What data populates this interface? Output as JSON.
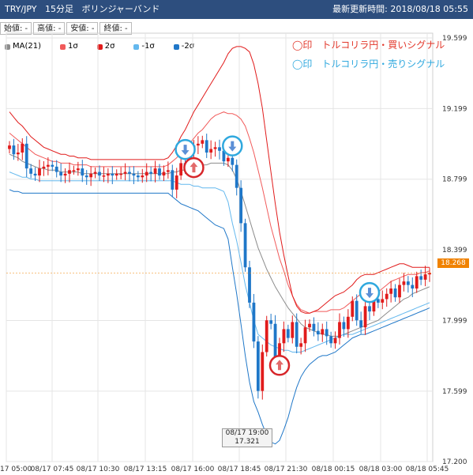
{
  "header": {
    "symbol": "TRY/JPY",
    "timeframe": "15分足",
    "indicator": "ボリンジャーバンド",
    "updated_label": "最新更新時間:",
    "updated_value": "2018/08/18 05:55"
  },
  "ohlc_boxes": [
    "始値: -",
    "高値: -",
    "安値: -",
    "終値: -"
  ],
  "legend": [
    {
      "label": "MA(21)",
      "color": "#8c8c8c"
    },
    {
      "label": "1σ",
      "color": "#f15a5a"
    },
    {
      "label": "2σ",
      "color": "#e11b1b"
    },
    {
      "label": "-1σ",
      "color": "#64b8ee"
    },
    {
      "label": "-2σ",
      "color": "#1f77c8"
    }
  ],
  "annotations": {
    "buy": "◯印　トルコリラ円・買いシグナル",
    "sell": "◯印　トルコリラ円・売りシグナル"
  },
  "colors": {
    "up": "#e11b1b",
    "down": "#1f77c8",
    "ma": "#8c8c8c",
    "upper1": "#f15a5a",
    "upper2": "#e11b1b",
    "lower1": "#64b8ee",
    "lower2": "#1f77c8",
    "buy_circle": "#d7262a",
    "sell_circle": "#2fa8de"
  },
  "last_price": "18.268",
  "tooltip": {
    "time": "08/17 19:00",
    "value": "17.321"
  },
  "chart_data": {
    "type": "candlestick",
    "symbol": "TRY/JPY",
    "ylim": [
      17.2,
      19.599
    ],
    "y_ticks": [
      "19.599",
      "19.199",
      "18.799",
      "18.399",
      "17.999",
      "17.599",
      "17.200"
    ],
    "x_ticks": [
      "17 05:00",
      "08/17 07:45",
      "08/17 10:30",
      "08/17 13:15",
      "08/17 16:00",
      "08/17 18:45",
      "08/17 21:30",
      "08/18 00:15",
      "08/18 03:00",
      "08/18 05:45"
    ],
    "candles_close": [
      18.99,
      18.94,
      18.95,
      19.0,
      18.86,
      18.83,
      18.82,
      18.86,
      18.87,
      18.88,
      18.87,
      18.84,
      18.82,
      18.83,
      18.85,
      18.85,
      18.86,
      18.82,
      18.81,
      18.83,
      18.84,
      18.82,
      18.82,
      18.83,
      18.82,
      18.83,
      18.83,
      18.84,
      18.83,
      18.82,
      18.81,
      18.82,
      18.84,
      18.83,
      18.86,
      18.82,
      18.84,
      18.85,
      18.74,
      18.82,
      18.89,
      18.86,
      18.96,
      18.99,
      19.0,
      19.02,
      18.95,
      18.97,
      18.98,
      18.96,
      18.9,
      18.92,
      18.88,
      18.75,
      18.55,
      18.3,
      18.1,
      17.88,
      17.6,
      17.82,
      18.0,
      17.98,
      17.76,
      17.87,
      17.95,
      17.9,
      17.99,
      17.85,
      17.87,
      17.96,
      17.98,
      17.94,
      17.92,
      17.95,
      17.91,
      17.87,
      17.9,
      17.99,
      17.95,
      18.02,
      18.11,
      18.0,
      17.96,
      18.08,
      18.05,
      18.12,
      18.1,
      18.12,
      18.15,
      18.18,
      18.13,
      18.2,
      18.22,
      18.2,
      18.18,
      18.25,
      18.23,
      18.26,
      18.268
    ],
    "series": [
      {
        "name": "MA(21)",
        "values": [
          18.94,
          18.93,
          18.92,
          18.9,
          18.89,
          18.88,
          18.87,
          18.86,
          18.86,
          18.85,
          18.85,
          18.85,
          18.84,
          18.84,
          18.84,
          18.84,
          18.84,
          18.83,
          18.83,
          18.83,
          18.83,
          18.83,
          18.83,
          18.83,
          18.83,
          18.83,
          18.83,
          18.83,
          18.83,
          18.83,
          18.83,
          18.83,
          18.83,
          18.83,
          18.83,
          18.83,
          18.83,
          18.83,
          18.84,
          18.84,
          18.85,
          18.85,
          18.86,
          18.86,
          18.87,
          18.88,
          18.88,
          18.89,
          18.89,
          18.89,
          18.89,
          18.88,
          18.85,
          18.8,
          18.73,
          18.65,
          18.57,
          18.49,
          18.41,
          18.35,
          18.29,
          18.24,
          18.19,
          18.15,
          18.11,
          18.07,
          18.04,
          18.01,
          17.98,
          17.96,
          17.95,
          17.94,
          17.93,
          17.92,
          17.92,
          17.91,
          17.91,
          17.91,
          17.92,
          17.93,
          17.94,
          17.95,
          17.96,
          17.97,
          17.98,
          17.99,
          18.0,
          18.02,
          18.04,
          18.06,
          18.08,
          18.1,
          18.12,
          18.13,
          18.15,
          18.16,
          18.17,
          18.18,
          18.19
        ]
      },
      {
        "name": "1σ",
        "values": [
          19.06,
          19.04,
          19.02,
          19.0,
          18.98,
          18.96,
          18.94,
          18.93,
          18.92,
          18.91,
          18.9,
          18.9,
          18.89,
          18.89,
          18.89,
          18.88,
          18.88,
          18.88,
          18.88,
          18.87,
          18.87,
          18.87,
          18.87,
          18.87,
          18.87,
          18.87,
          18.87,
          18.87,
          18.87,
          18.87,
          18.87,
          18.87,
          18.87,
          18.87,
          18.87,
          18.87,
          18.87,
          18.88,
          18.9,
          18.92,
          18.95,
          18.97,
          19.0,
          19.03,
          19.06,
          19.08,
          19.11,
          19.14,
          19.16,
          19.17,
          19.18,
          19.17,
          19.17,
          19.16,
          19.14,
          19.1,
          19.03,
          18.95,
          18.85,
          18.75,
          18.64,
          18.53,
          18.44,
          18.35,
          18.28,
          18.2,
          18.14,
          18.09,
          18.06,
          18.05,
          18.04,
          18.05,
          18.05,
          18.05,
          18.05,
          18.06,
          18.06,
          18.06,
          18.07,
          18.09,
          18.11,
          18.13,
          18.15,
          18.16,
          18.16,
          18.16,
          18.16,
          18.18,
          18.2,
          18.22,
          18.23,
          18.24,
          18.25,
          18.26,
          18.26,
          18.26,
          18.27,
          18.27,
          18.28
        ]
      },
      {
        "name": "2σ",
        "values": [
          19.18,
          19.15,
          19.12,
          19.1,
          19.07,
          19.04,
          19.02,
          19.0,
          18.98,
          18.97,
          18.96,
          18.95,
          18.94,
          18.94,
          18.93,
          18.93,
          18.92,
          18.92,
          18.92,
          18.91,
          18.91,
          18.91,
          18.91,
          18.91,
          18.91,
          18.91,
          18.91,
          18.91,
          18.91,
          18.91,
          18.91,
          18.91,
          18.91,
          18.91,
          18.91,
          18.91,
          18.91,
          18.92,
          18.95,
          18.99,
          19.04,
          19.08,
          19.13,
          19.18,
          19.22,
          19.26,
          19.3,
          19.34,
          19.38,
          19.42,
          19.46,
          19.51,
          19.54,
          19.55,
          19.55,
          19.54,
          19.52,
          19.45,
          19.34,
          19.2,
          19.02,
          18.84,
          18.66,
          18.5,
          18.37,
          18.25,
          18.14,
          18.08,
          18.05,
          18.04,
          18.04,
          18.05,
          18.06,
          18.08,
          18.1,
          18.12,
          18.14,
          18.15,
          18.16,
          18.18,
          18.2,
          18.23,
          18.25,
          18.26,
          18.26,
          18.26,
          18.27,
          18.28,
          18.29,
          18.3,
          18.31,
          18.32,
          18.32,
          18.31,
          18.3,
          18.3,
          18.3,
          18.3,
          18.3
        ]
      },
      {
        "name": "-1σ",
        "values": [
          18.84,
          18.83,
          18.82,
          18.81,
          18.81,
          18.8,
          18.8,
          18.79,
          18.79,
          18.79,
          18.79,
          18.79,
          18.79,
          18.79,
          18.79,
          18.79,
          18.79,
          18.79,
          18.79,
          18.79,
          18.79,
          18.79,
          18.79,
          18.79,
          18.79,
          18.79,
          18.79,
          18.79,
          18.79,
          18.79,
          18.79,
          18.79,
          18.79,
          18.79,
          18.79,
          18.79,
          18.79,
          18.79,
          18.79,
          18.78,
          18.77,
          18.77,
          18.77,
          18.76,
          18.76,
          18.75,
          18.75,
          18.75,
          18.75,
          18.74,
          18.73,
          18.67,
          18.55,
          18.45,
          18.33,
          18.2,
          18.1,
          18.0,
          17.92,
          17.9,
          17.88,
          17.86,
          17.85,
          17.84,
          17.83,
          17.83,
          17.82,
          17.82,
          17.82,
          17.83,
          17.84,
          17.85,
          17.86,
          17.87,
          17.88,
          17.89,
          17.9,
          17.91,
          17.92,
          17.92,
          17.92,
          17.93,
          17.94,
          17.95,
          17.96,
          17.97,
          17.98,
          17.99,
          18.0,
          18.01,
          18.02,
          18.03,
          18.04,
          18.05,
          18.06,
          18.07,
          18.08,
          18.09,
          18.1
        ]
      },
      {
        "name": "-2σ",
        "values": [
          18.74,
          18.73,
          18.73,
          18.72,
          18.72,
          18.72,
          18.72,
          18.72,
          18.72,
          18.72,
          18.72,
          18.72,
          18.72,
          18.72,
          18.72,
          18.72,
          18.72,
          18.72,
          18.72,
          18.72,
          18.72,
          18.72,
          18.72,
          18.72,
          18.72,
          18.72,
          18.72,
          18.72,
          18.72,
          18.72,
          18.72,
          18.72,
          18.72,
          18.72,
          18.72,
          18.72,
          18.72,
          18.72,
          18.7,
          18.68,
          18.66,
          18.65,
          18.64,
          18.63,
          18.62,
          18.6,
          18.58,
          18.56,
          18.54,
          18.53,
          18.52,
          18.46,
          18.3,
          18.15,
          17.98,
          17.8,
          17.65,
          17.54,
          17.48,
          17.41,
          17.35,
          17.31,
          17.3,
          17.32,
          17.38,
          17.45,
          17.54,
          17.62,
          17.68,
          17.72,
          17.75,
          17.77,
          17.79,
          17.8,
          17.8,
          17.81,
          17.82,
          17.84,
          17.86,
          17.88,
          17.9,
          17.91,
          17.92,
          17.92,
          17.93,
          17.94,
          17.95,
          17.96,
          17.97,
          17.98,
          17.99,
          18.0,
          18.01,
          18.02,
          18.03,
          18.04,
          18.05,
          18.06,
          18.07
        ]
      }
    ],
    "signals": [
      {
        "type": "sell",
        "index": 41
      },
      {
        "type": "sell",
        "index": 52
      },
      {
        "type": "sell",
        "index": 84
      },
      {
        "type": "buy",
        "index": 43
      },
      {
        "type": "buy",
        "index": 63
      }
    ]
  }
}
